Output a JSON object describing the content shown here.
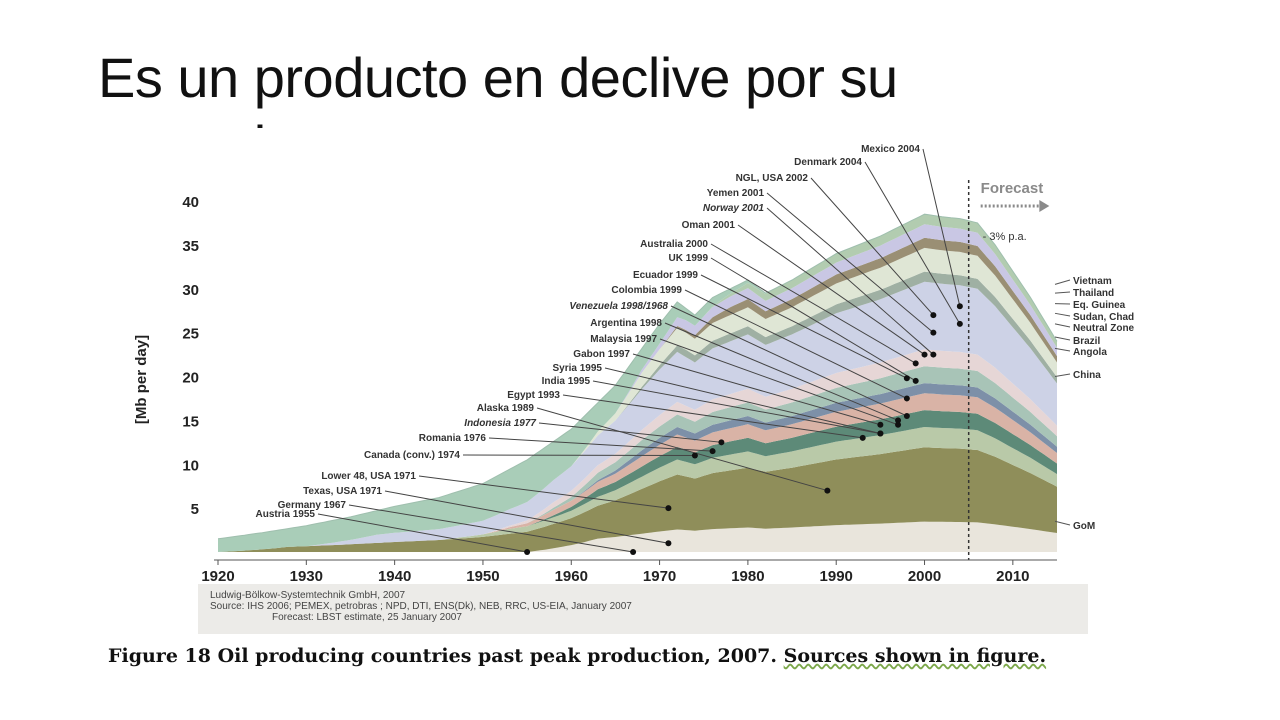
{
  "slide": {
    "title": "Es un producto en declive por su naturaleza"
  },
  "chart_data": {
    "type": "area",
    "title": "",
    "ylabel": "[Mb per day]",
    "xlabel": "",
    "x_ticks": [
      "1920",
      "1930",
      "1940",
      "1950",
      "1960",
      "1970",
      "1980",
      "1990",
      "2000",
      "2010"
    ],
    "y_ticks": [
      "5",
      "10",
      "15",
      "20",
      "25",
      "30",
      "35",
      "40"
    ],
    "xlim": [
      1920,
      2015
    ],
    "ylim": [
      0,
      40
    ],
    "forecast_label": "Forecast",
    "forecast_rate": "- 3% p.a.",
    "forecast_start": 2005,
    "total_series": {
      "x": [
        1920,
        1925,
        1930,
        1935,
        1940,
        1945,
        1950,
        1955,
        1960,
        1965,
        1970,
        1972,
        1974,
        1976,
        1978,
        1980,
        1982,
        1985,
        1990,
        1995,
        1998,
        2000,
        2002,
        2004,
        2006,
        2008,
        2010,
        2012,
        2015
      ],
      "y": [
        1.5,
        2.2,
        3.0,
        4.0,
        5.2,
        6.2,
        7.8,
        10.5,
        14,
        19,
        26,
        28.5,
        27,
        29,
        30,
        31,
        29.5,
        31,
        34,
        36,
        37.5,
        38.5,
        38.2,
        38,
        37.5,
        35,
        32,
        29,
        24
      ]
    },
    "peak_annotations": [
      {
        "label": "Mexico 2004",
        "year": 2004,
        "value": 28
      },
      {
        "label": "Denmark 2004",
        "year": 2004,
        "value": 26
      },
      {
        "label": "NGL, USA 2002",
        "year": 2001,
        "value": 27
      },
      {
        "label": "Yemen 2001",
        "year": 2001,
        "value": 25
      },
      {
        "label": "Norway 2001",
        "year": 2001,
        "value": 22.5
      },
      {
        "label": "Oman 2001",
        "year": 2000,
        "value": 22.5
      },
      {
        "label": "Australia 2000",
        "year": 1999,
        "value": 21.5
      },
      {
        "label": "UK 1999",
        "year": 1999,
        "value": 19.5
      },
      {
        "label": "Ecuador 1999",
        "year": 1998,
        "value": 19.8
      },
      {
        "label": "Colombia 1999",
        "year": 1998,
        "value": 17.5
      },
      {
        "label": "Venezuela 1998/1968",
        "year": 1998,
        "value": 15.5
      },
      {
        "label": "Argentina 1998",
        "year": 1997,
        "value": 15
      },
      {
        "label": "Malaysia 1997",
        "year": 1997,
        "value": 14.5
      },
      {
        "label": "Gabon 1997",
        "year": 1995,
        "value": 14.5
      },
      {
        "label": "Syria 1995",
        "year": 1995,
        "value": 13.5
      },
      {
        "label": "India 1995",
        "year": 1995,
        "value": 13.5
      },
      {
        "label": "Egypt 1993",
        "year": 1993,
        "value": 13
      },
      {
        "label": "Alaska 1989",
        "year": 1989,
        "value": 7
      },
      {
        "label": "Indonesia 1977",
        "year": 1977,
        "value": 12.5
      },
      {
        "label": "Romania 1976",
        "year": 1976,
        "value": 11.5
      },
      {
        "label": "Canada (conv.) 1974",
        "year": 1974,
        "value": 11
      },
      {
        "label": "Lower 48, USA 1971",
        "year": 1971,
        "value": 5
      },
      {
        "label": "Texas, USA 1971",
        "year": 1971,
        "value": 1
      },
      {
        "label": "Germany 1967",
        "year": 1967,
        "value": 0
      },
      {
        "label": "Austria 1955",
        "year": 1955,
        "value": 0
      }
    ],
    "right_labels": [
      {
        "label": "Vietnam",
        "value": 30.5
      },
      {
        "label": "Thailand",
        "value": 29.5
      },
      {
        "label": "Eq. Guinea",
        "value": 28.3
      },
      {
        "label": "Sudan, Chad",
        "value": 27.2
      },
      {
        "label": "Neutral Zone",
        "value": 26
      },
      {
        "label": "Brazil",
        "value": 24.5
      },
      {
        "label": "Angola",
        "value": 23.2
      },
      {
        "label": "China",
        "value": 20
      },
      {
        "label": "GoM",
        "value": 3.5
      }
    ],
    "source_lines": [
      "Ludwig-Bölkow-Systemtechnik GmbH, 2007",
      "Source: IHS 2006; PEMEX, petrobras ;  NPD, DTI, ENS(Dk), NEB, RRC, US-EIA, January 2007",
      "Forecast: LBST estimate, 25 January 2007"
    ]
  },
  "caption": {
    "main": "Figure 18 Oil producing countries past peak production, 2007.",
    "sources": "Sources shown in figure."
  }
}
